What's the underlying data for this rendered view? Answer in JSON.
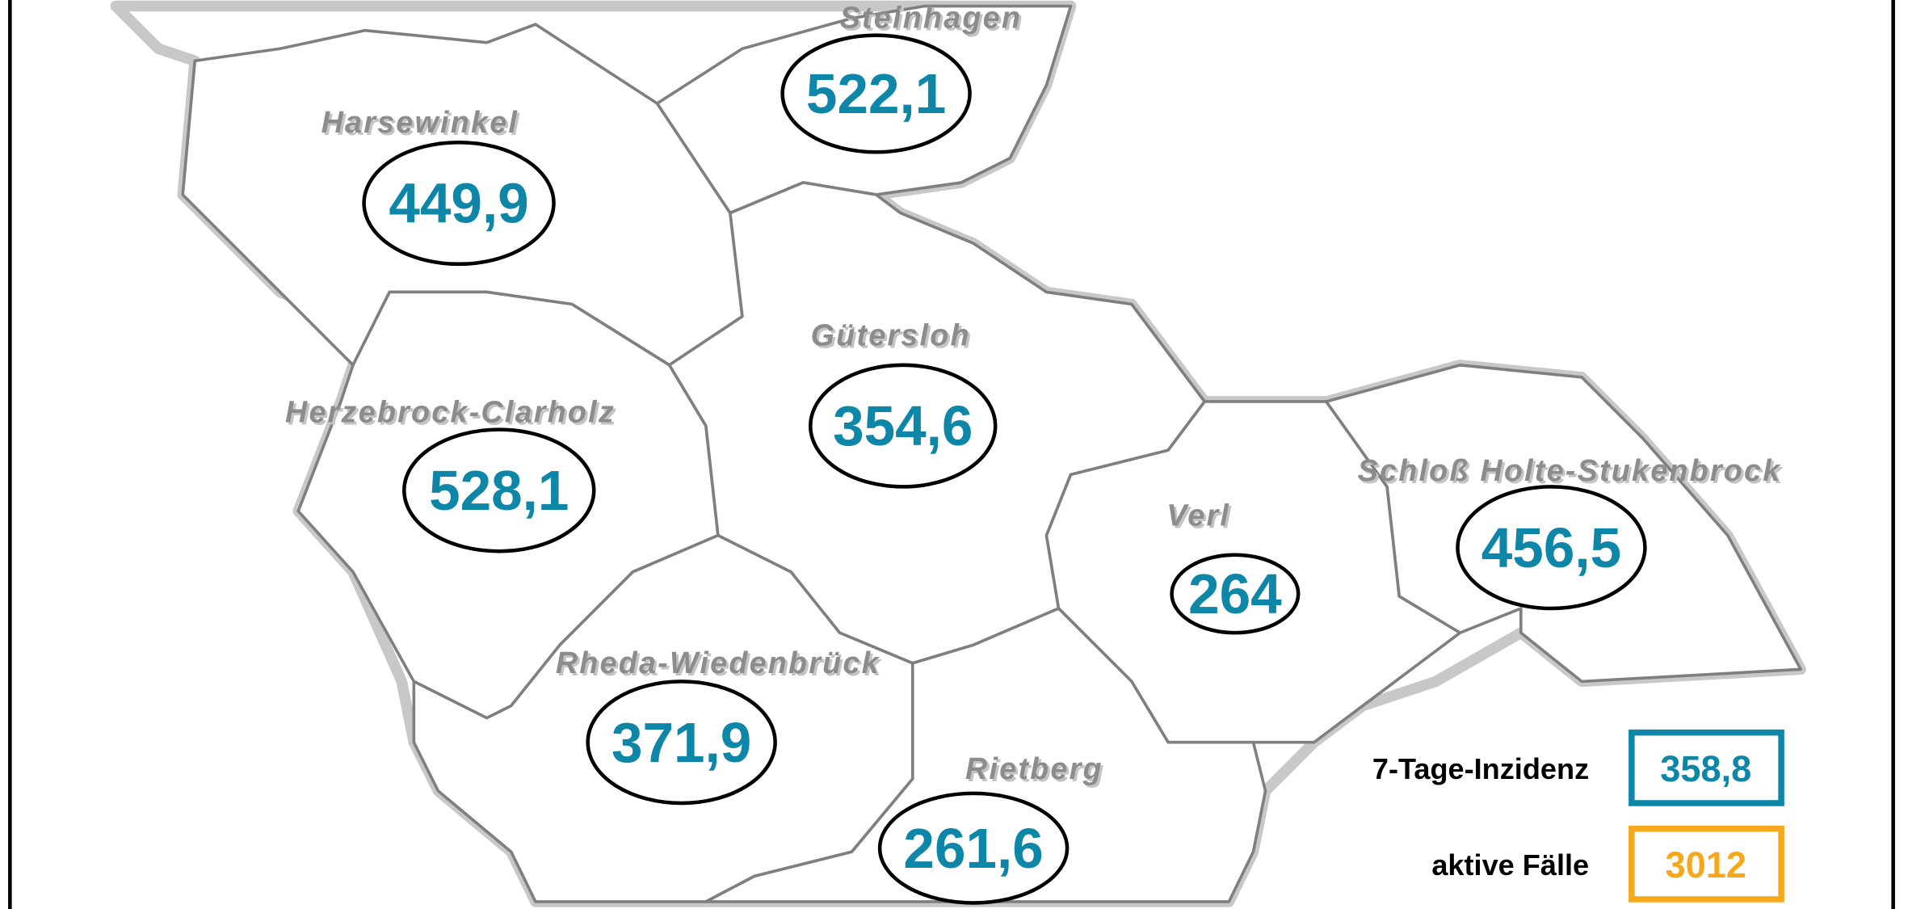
{
  "colors": {
    "incidence": "#0e86a8",
    "active_cases": "#f5a81c",
    "boundary": "#7f7f7f",
    "outer_boundary": "#c8c8c8"
  },
  "regions": [
    {
      "name": "Steinhagen",
      "value": "522,1"
    },
    {
      "name": "Harsewinkel",
      "value": "449,9"
    },
    {
      "name": "Gütersloh",
      "value": "354,6"
    },
    {
      "name": "Herzebrock-Clarholz",
      "value": "528,1"
    },
    {
      "name": "Verl",
      "value": "264"
    },
    {
      "name": "Schloß Holte-Stukenbrock",
      "value": "456,5"
    },
    {
      "name": "Rheda-Wiedenbrück",
      "value": "371,9"
    },
    {
      "name": "Rietberg",
      "value": "261,6"
    }
  ],
  "legend": {
    "incidence_label": "7-Tage-Inzidenz",
    "incidence_value": "358,8",
    "active_label": "aktive Fälle",
    "active_value": "3012"
  }
}
